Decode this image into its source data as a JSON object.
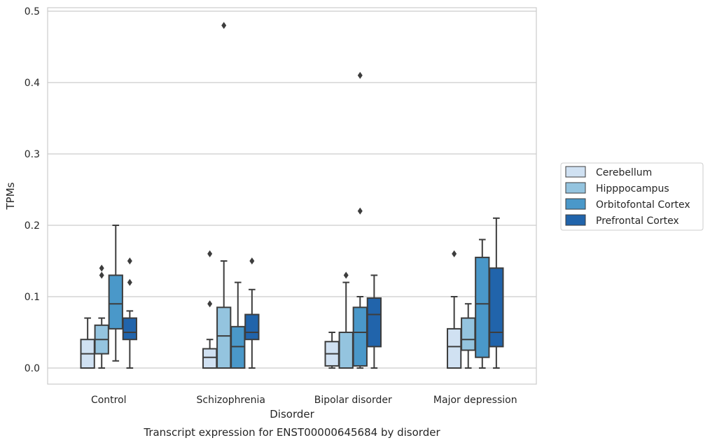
{
  "chart_data": {
    "type": "box",
    "title": "",
    "caption": "Transcript expression for ENST00000645684 by disorder",
    "xlabel": "Disorder",
    "ylabel": "TPMs",
    "ylim": [
      -0.023,
      0.505
    ],
    "yticks": [
      0.0,
      0.1,
      0.2,
      0.3,
      0.4,
      0.5
    ],
    "ytick_labels": [
      "0.0",
      "0.1",
      "0.2",
      "0.3",
      "0.4",
      "0.5"
    ],
    "grid": "horizontal",
    "legend_position": "center-right outside",
    "categories": [
      "Control",
      "Schizophrenia",
      "Bipolar disorder",
      "Major depression"
    ],
    "series": [
      {
        "name": "Cerebellum",
        "color": "#d0e1f2",
        "boxes": [
          {
            "min": 0.0,
            "q1": 0.0,
            "median": 0.02,
            "q3": 0.04,
            "max": 0.07,
            "outliers": []
          },
          {
            "min": 0.0,
            "q1": 0.0,
            "median": 0.015,
            "q3": 0.027,
            "max": 0.04,
            "outliers": [
              0.09,
              0.16
            ]
          },
          {
            "min": 0.0,
            "q1": 0.003,
            "median": 0.02,
            "q3": 0.037,
            "max": 0.05,
            "outliers": []
          },
          {
            "min": 0.0,
            "q1": 0.0,
            "median": 0.03,
            "q3": 0.055,
            "max": 0.1,
            "outliers": [
              0.16
            ]
          }
        ]
      },
      {
        "name": "Hipppocampus",
        "color": "#94c4df",
        "boxes": [
          {
            "min": 0.0,
            "q1": 0.02,
            "median": 0.04,
            "q3": 0.06,
            "max": 0.07,
            "outliers": [
              0.13,
              0.14
            ]
          },
          {
            "min": 0.0,
            "q1": 0.0,
            "median": 0.045,
            "q3": 0.085,
            "max": 0.15,
            "outliers": [
              0.48
            ]
          },
          {
            "min": 0.0,
            "q1": 0.0,
            "median": 0.0,
            "q3": 0.05,
            "max": 0.12,
            "outliers": [
              0.13
            ]
          },
          {
            "min": 0.0,
            "q1": 0.025,
            "median": 0.04,
            "q3": 0.07,
            "max": 0.09,
            "outliers": []
          }
        ]
      },
      {
        "name": "Orbitofontal Cortex",
        "color": "#4a98c9",
        "boxes": [
          {
            "min": 0.01,
            "q1": 0.055,
            "median": 0.09,
            "q3": 0.13,
            "max": 0.2,
            "outliers": []
          },
          {
            "min": 0.0,
            "q1": 0.0,
            "median": 0.03,
            "q3": 0.058,
            "max": 0.12,
            "outliers": []
          },
          {
            "min": 0.0,
            "q1": 0.003,
            "median": 0.05,
            "q3": 0.085,
            "max": 0.1,
            "outliers": [
              0.22,
              0.41
            ]
          },
          {
            "min": 0.0,
            "q1": 0.015,
            "median": 0.09,
            "q3": 0.155,
            "max": 0.18,
            "outliers": []
          }
        ]
      },
      {
        "name": "Prefrontal Cortex",
        "color": "#2164ab",
        "boxes": [
          {
            "min": 0.0,
            "q1": 0.04,
            "median": 0.05,
            "q3": 0.07,
            "max": 0.08,
            "outliers": [
              0.12,
              0.15
            ]
          },
          {
            "min": 0.0,
            "q1": 0.04,
            "median": 0.05,
            "q3": 0.075,
            "max": 0.11,
            "outliers": [
              0.15
            ]
          },
          {
            "min": 0.0,
            "q1": 0.03,
            "median": 0.075,
            "q3": 0.098,
            "max": 0.13,
            "outliers": []
          },
          {
            "min": 0.0,
            "q1": 0.03,
            "median": 0.05,
            "q3": 0.14,
            "max": 0.21,
            "outliers": []
          }
        ]
      }
    ]
  }
}
